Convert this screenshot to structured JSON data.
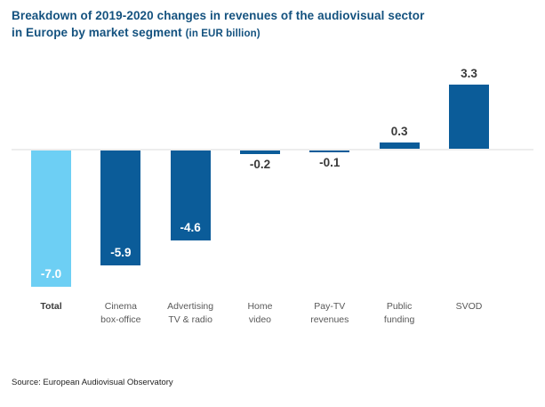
{
  "title": {
    "line1": "Breakdown of 2019-2020 changes in revenues of the audiovisual sector",
    "line2_main": "in Europe by market segment",
    "line2_note": "(in EUR billion)"
  },
  "source": "Source: European Audiovisual Observatory",
  "colors": {
    "title_text": "#14527F",
    "bar_default": "#0B5C99",
    "bar_total_highlight": "#6DCFF4",
    "axis_line": "#EDEDED",
    "value_label_dark": "#3A3A3A",
    "value_label_on_bar": "#FFFFFF",
    "category_label": "#595959",
    "category_label_total": "#3A3A3A"
  },
  "chart_data": {
    "type": "bar",
    "title": "Breakdown of 2019-2020 changes in revenues of the audiovisual sector in Europe by market segment (in EUR billion)",
    "categories": [
      "Total",
      "Cinema box-office",
      "Advertising TV & radio",
      "Home video",
      "Pay-TV revenues",
      "Public funding",
      "SVOD"
    ],
    "category_label_lines": [
      [
        "Total"
      ],
      [
        "Cinema",
        "box-office"
      ],
      [
        "Advertising",
        "TV & radio"
      ],
      [
        "Home",
        "video"
      ],
      [
        "Pay-TV",
        "revenues"
      ],
      [
        "Public",
        "funding"
      ],
      [
        "SVOD"
      ]
    ],
    "values": [
      -7.0,
      -5.9,
      -4.6,
      -0.2,
      -0.1,
      0.3,
      3.3
    ],
    "value_labels": [
      "-7.0",
      "-5.9",
      "-4.6",
      "-0.2",
      "-0.1",
      "0.3",
      "3.3"
    ],
    "bar_colors": [
      "#6DCFF4",
      "#0B5C99",
      "#0B5C99",
      "#0B5C99",
      "#0B5C99",
      "#0B5C99",
      "#0B5C99"
    ],
    "xlabel": "",
    "ylabel": "",
    "ylim": [
      -7.5,
      3.8
    ],
    "grid": false,
    "legend": false,
    "baseline": 0,
    "source": "Source: European Audiovisual Observatory"
  }
}
